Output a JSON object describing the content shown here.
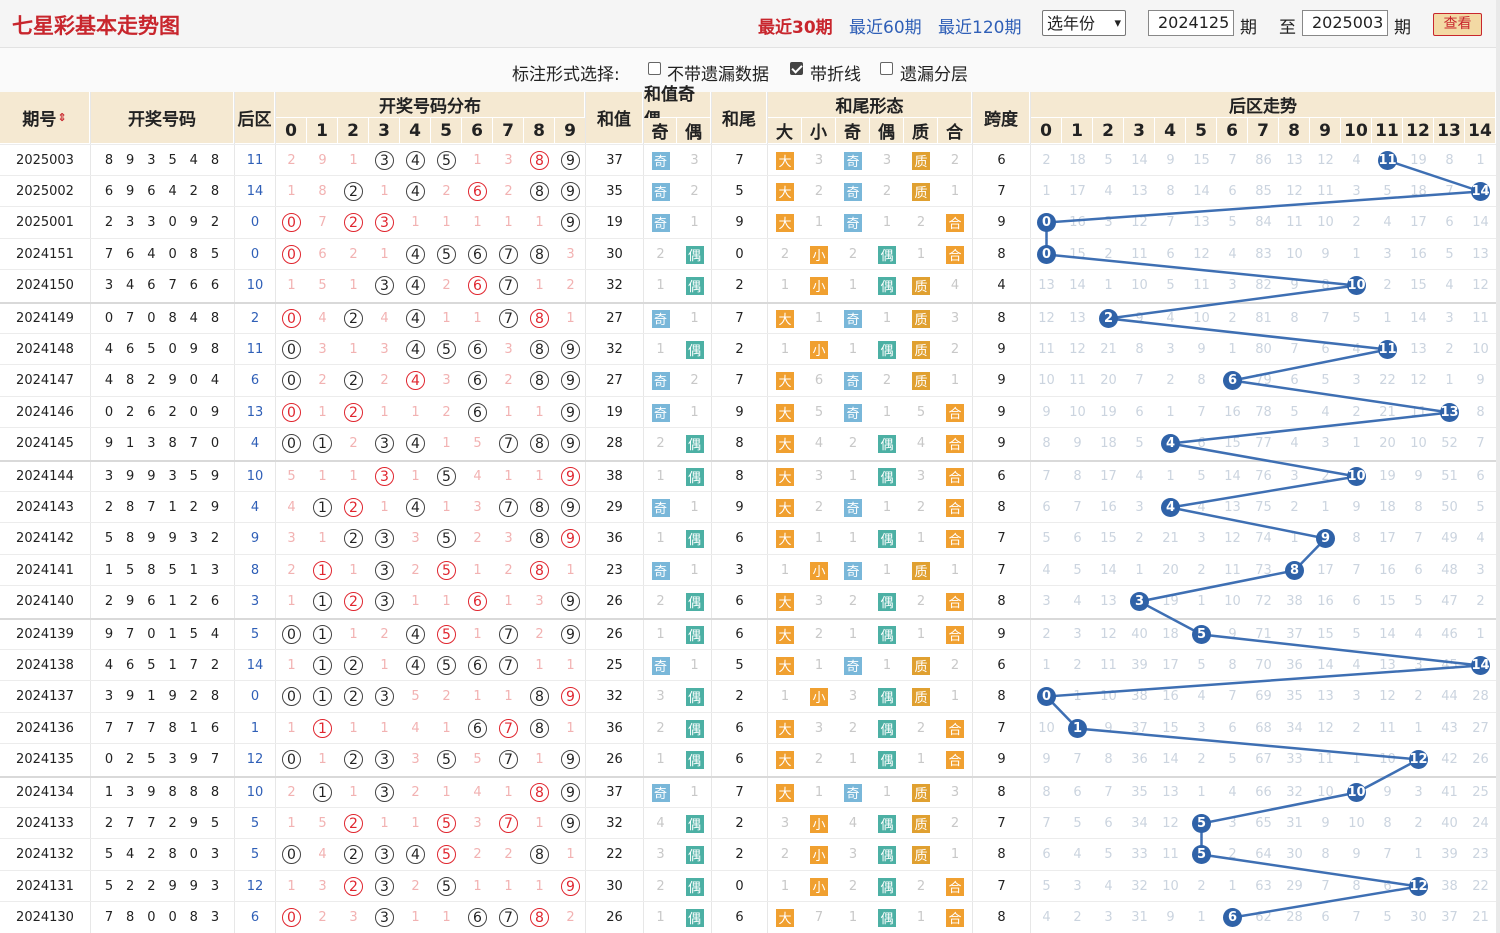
{
  "header": {
    "title": "七星彩基本走势图",
    "links": [
      "最近30期",
      "最近60期",
      "最近120期"
    ],
    "year_select": "选年份",
    "period_from": "2024125",
    "period_unit": "期",
    "to_label": "至",
    "period_to": "2025003",
    "query_button": "查看"
  },
  "options": {
    "label": "标注形式选择:",
    "items": [
      {
        "label": "不带遗漏数据",
        "checked": false
      },
      {
        "label": "带折线",
        "checked": true
      },
      {
        "label": "遗漏分层",
        "checked": false
      }
    ]
  },
  "table_headers": {
    "period": "期号",
    "sort_icon": "sort-arrows-icon",
    "numbers": "开奖号码",
    "back": "后区",
    "distribution": "开奖号码分布",
    "digits": [
      "0",
      "1",
      "2",
      "3",
      "4",
      "5",
      "6",
      "7",
      "8",
      "9"
    ],
    "sum": "和值",
    "sum_parity": "和值奇偶",
    "odd": "奇",
    "even": "偶",
    "tail": "和尾",
    "tail_form": "和尾形态",
    "form_cols": [
      "大",
      "小",
      "奇",
      "偶",
      "质",
      "合"
    ],
    "span": "跨度",
    "back_trend": "后区走势",
    "back_cols": [
      "0",
      "1",
      "2",
      "3",
      "4",
      "5",
      "6",
      "7",
      "8",
      "9",
      "10",
      "11",
      "12",
      "13",
      "14"
    ]
  },
  "rows": [
    {
      "period": "2025003",
      "nums": "8 9 3 5 4 8",
      "back": "11",
      "dist": [
        2,
        9,
        1,
        "3",
        "4",
        "5",
        1,
        3,
        "8r",
        "9"
      ],
      "sum": "37",
      "parity": [
        "奇",
        "3"
      ],
      "tail": "7",
      "form": [
        "大",
        "3",
        "奇",
        "3",
        "质",
        "2"
      ],
      "span": "6",
      "trend": [
        2,
        18,
        5,
        14,
        9,
        15,
        7,
        86,
        13,
        12,
        4,
        "11",
        19,
        8,
        1
      ]
    },
    {
      "period": "2025002",
      "nums": "6 9 6 4 2 8",
      "back": "14",
      "dist": [
        1,
        8,
        "2",
        1,
        "4",
        2,
        "6r",
        2,
        "8",
        "9"
      ],
      "sum": "35",
      "parity": [
        "奇",
        "2"
      ],
      "tail": "5",
      "form": [
        "大",
        "2",
        "奇",
        "2",
        "质",
        "1"
      ],
      "span": "7",
      "trend": [
        1,
        17,
        4,
        13,
        8,
        14,
        6,
        85,
        12,
        11,
        3,
        5,
        18,
        7,
        "14"
      ]
    },
    {
      "period": "2025001",
      "nums": "2 3 3 0 9 2",
      "back": "0",
      "dist": [
        "0r",
        7,
        "2r",
        "3r",
        1,
        1,
        1,
        1,
        1,
        "9"
      ],
      "sum": "19",
      "parity": [
        "奇",
        "1"
      ],
      "tail": "9",
      "form": [
        "大",
        "1",
        "奇",
        "1",
        "2",
        "合"
      ],
      "span": "9",
      "trend": [
        "0",
        16,
        3,
        12,
        7,
        13,
        5,
        84,
        11,
        10,
        2,
        4,
        17,
        6,
        14
      ]
    },
    {
      "period": "2024151",
      "nums": "7 6 4 0 8 5",
      "back": "0",
      "dist": [
        "0r",
        6,
        2,
        1,
        "4",
        "5",
        "6",
        "7",
        "8",
        3
      ],
      "sum": "30",
      "parity": [
        "2",
        "偶"
      ],
      "tail": "0",
      "form": [
        "2",
        "小",
        "2",
        "偶",
        "1",
        "合"
      ],
      "span": "8",
      "trend": [
        "0",
        15,
        2,
        11,
        6,
        12,
        4,
        83,
        10,
        9,
        1,
        3,
        16,
        5,
        13
      ]
    },
    {
      "period": "2024150",
      "nums": "3 4 6 7 6 6",
      "back": "10",
      "dist": [
        1,
        5,
        1,
        "3",
        "4",
        2,
        "6r",
        "7",
        1,
        2
      ],
      "sum": "32",
      "parity": [
        "1",
        "偶"
      ],
      "tail": "2",
      "form": [
        "1",
        "小",
        "1",
        "偶",
        "质",
        "4"
      ],
      "span": "4",
      "trend": [
        13,
        14,
        1,
        10,
        5,
        11,
        3,
        82,
        9,
        8,
        "10",
        2,
        15,
        4,
        12
      ]
    },
    {
      "period": "2024149",
      "nums": "0 7 0 8 4 8",
      "back": "2",
      "dist": [
        "0r",
        4,
        "2",
        4,
        "4",
        1,
        1,
        "7",
        "8r",
        1
      ],
      "sum": "27",
      "parity": [
        "奇",
        "1"
      ],
      "tail": "7",
      "form": [
        "大",
        "1",
        "奇",
        "1",
        "质",
        "3"
      ],
      "span": "8",
      "trend": [
        12,
        13,
        "2",
        9,
        4,
        10,
        2,
        81,
        8,
        7,
        5,
        1,
        14,
        3,
        11
      ]
    },
    {
      "period": "2024148",
      "nums": "4 6 5 0 9 8",
      "back": "11",
      "dist": [
        "0",
        3,
        1,
        3,
        "4",
        "5",
        "6",
        3,
        "8",
        "9"
      ],
      "sum": "32",
      "parity": [
        "1",
        "偶"
      ],
      "tail": "2",
      "form": [
        "1",
        "小",
        "1",
        "偶",
        "质",
        "2"
      ],
      "span": "9",
      "trend": [
        11,
        12,
        21,
        8,
        3,
        9,
        1,
        80,
        7,
        6,
        4,
        "11",
        13,
        2,
        10
      ]
    },
    {
      "period": "2024147",
      "nums": "4 8 2 9 0 4",
      "back": "6",
      "dist": [
        "0",
        2,
        "2",
        2,
        "4r",
        3,
        "6",
        2,
        "8",
        "9"
      ],
      "sum": "27",
      "parity": [
        "奇",
        "2"
      ],
      "tail": "7",
      "form": [
        "大",
        "6",
        "奇",
        "2",
        "质",
        "1"
      ],
      "span": "9",
      "trend": [
        10,
        11,
        20,
        7,
        2,
        8,
        "6",
        79,
        6,
        5,
        3,
        22,
        12,
        1,
        9
      ]
    },
    {
      "period": "2024146",
      "nums": "0 2 6 2 0 9",
      "back": "13",
      "dist": [
        "0r",
        1,
        "2r",
        1,
        1,
        2,
        "6",
        1,
        1,
        "9"
      ],
      "sum": "19",
      "parity": [
        "奇",
        "1"
      ],
      "tail": "9",
      "form": [
        "大",
        "5",
        "奇",
        "1",
        "5",
        "合"
      ],
      "span": "9",
      "trend": [
        9,
        10,
        19,
        6,
        1,
        7,
        16,
        78,
        5,
        4,
        2,
        21,
        11,
        "13",
        8
      ]
    },
    {
      "period": "2024145",
      "nums": "9 1 3 8 7 0",
      "back": "4",
      "dist": [
        "0",
        "1",
        2,
        "3",
        "4",
        1,
        5,
        "7",
        "8",
        "9"
      ],
      "sum": "28",
      "parity": [
        "2",
        "偶"
      ],
      "tail": "8",
      "form": [
        "大",
        "4",
        "2",
        "偶",
        "4",
        "合"
      ],
      "span": "9",
      "trend": [
        8,
        9,
        18,
        5,
        "4",
        6,
        15,
        77,
        4,
        3,
        1,
        20,
        10,
        52,
        7
      ]
    },
    {
      "period": "2024144",
      "nums": "3 9 9 3 5 9",
      "back": "10",
      "dist": [
        5,
        1,
        1,
        "3r",
        1,
        "5",
        4,
        1,
        1,
        "9r"
      ],
      "sum": "38",
      "parity": [
        "1",
        "偶"
      ],
      "tail": "8",
      "form": [
        "大",
        "3",
        "1",
        "偶",
        "3",
        "合"
      ],
      "span": "6",
      "trend": [
        7,
        8,
        17,
        4,
        1,
        5,
        14,
        76,
        3,
        2,
        "10",
        19,
        9,
        51,
        6
      ]
    },
    {
      "period": "2024143",
      "nums": "2 8 7 1 2 9",
      "back": "4",
      "dist": [
        4,
        "1",
        "2r",
        1,
        "4",
        1,
        3,
        "7",
        "8",
        "9"
      ],
      "sum": "29",
      "parity": [
        "奇",
        "1"
      ],
      "tail": "9",
      "form": [
        "大",
        "2",
        "奇",
        "1",
        "2",
        "合"
      ],
      "span": "8",
      "trend": [
        6,
        7,
        16,
        3,
        "4",
        4,
        13,
        75,
        2,
        1,
        9,
        18,
        8,
        50,
        5
      ]
    },
    {
      "period": "2024142",
      "nums": "5 8 9 9 3 2",
      "back": "9",
      "dist": [
        3,
        1,
        "2",
        "3",
        3,
        "5",
        2,
        3,
        "8",
        "9r"
      ],
      "sum": "36",
      "parity": [
        "1",
        "偶"
      ],
      "tail": "6",
      "form": [
        "大",
        "1",
        "1",
        "偶",
        "1",
        "合"
      ],
      "span": "7",
      "trend": [
        5,
        6,
        15,
        2,
        21,
        3,
        12,
        74,
        1,
        "9",
        8,
        17,
        7,
        49,
        4
      ]
    },
    {
      "period": "2024141",
      "nums": "1 5 8 5 1 3",
      "back": "8",
      "dist": [
        2,
        "1r",
        1,
        "3",
        2,
        "5r",
        1,
        2,
        "8r",
        1
      ],
      "sum": "23",
      "parity": [
        "奇",
        "1"
      ],
      "tail": "3",
      "form": [
        "1",
        "小",
        "奇",
        "1",
        "质",
        "1"
      ],
      "span": "7",
      "trend": [
        4,
        5,
        14,
        1,
        20,
        2,
        11,
        73,
        "8",
        17,
        7,
        16,
        6,
        48,
        3
      ]
    },
    {
      "period": "2024140",
      "nums": "2 9 6 1 2 6",
      "back": "3",
      "dist": [
        1,
        "1",
        "2r",
        "3",
        1,
        1,
        "6r",
        1,
        3,
        "9"
      ],
      "sum": "26",
      "parity": [
        "2",
        "偶"
      ],
      "tail": "6",
      "form": [
        "大",
        "3",
        "2",
        "偶",
        "2",
        "合"
      ],
      "span": "8",
      "trend": [
        3,
        4,
        13,
        "3",
        19,
        1,
        10,
        72,
        38,
        16,
        6,
        15,
        5,
        47,
        2
      ]
    },
    {
      "period": "2024139",
      "nums": "9 7 0 1 5 4",
      "back": "5",
      "dist": [
        "0",
        "1",
        1,
        2,
        "4",
        "5r",
        1,
        "7",
        2,
        "9"
      ],
      "sum": "26",
      "parity": [
        "1",
        "偶"
      ],
      "tail": "6",
      "form": [
        "大",
        "2",
        "1",
        "偶",
        "1",
        "合"
      ],
      "span": "9",
      "trend": [
        2,
        3,
        12,
        40,
        18,
        "5",
        9,
        71,
        37,
        15,
        5,
        14,
        4,
        46,
        1
      ]
    },
    {
      "period": "2024138",
      "nums": "4 6 5 1 7 2",
      "back": "14",
      "dist": [
        1,
        "1",
        "2",
        1,
        "4",
        "5",
        "6",
        "7",
        1,
        1
      ],
      "sum": "25",
      "parity": [
        "奇",
        "1"
      ],
      "tail": "5",
      "form": [
        "大",
        "1",
        "奇",
        "1",
        "质",
        "2"
      ],
      "span": "6",
      "trend": [
        1,
        2,
        11,
        39,
        17,
        5,
        8,
        70,
        36,
        14,
        4,
        13,
        3,
        45,
        "14"
      ]
    },
    {
      "period": "2024137",
      "nums": "3 9 1 9 2 8",
      "back": "0",
      "dist": [
        "0",
        "1",
        "2",
        "3",
        5,
        2,
        1,
        1,
        "8",
        "9r"
      ],
      "sum": "32",
      "parity": [
        "3",
        "偶"
      ],
      "tail": "2",
      "form": [
        "1",
        "小",
        "3",
        "偶",
        "质",
        "1"
      ],
      "span": "8",
      "trend": [
        "0",
        1,
        10,
        38,
        16,
        4,
        7,
        69,
        35,
        13,
        3,
        12,
        2,
        44,
        28
      ]
    },
    {
      "period": "2024136",
      "nums": "7 7 7 8 1 6",
      "back": "1",
      "dist": [
        1,
        "1r",
        1,
        1,
        4,
        1,
        "6",
        "7r",
        "8",
        1
      ],
      "sum": "36",
      "parity": [
        "2",
        "偶"
      ],
      "tail": "6",
      "form": [
        "大",
        "3",
        "2",
        "偶",
        "2",
        "合"
      ],
      "span": "7",
      "trend": [
        10,
        "1",
        9,
        37,
        15,
        3,
        6,
        68,
        34,
        12,
        2,
        11,
        1,
        43,
        27
      ]
    },
    {
      "period": "2024135",
      "nums": "0 2 5 3 9 7",
      "back": "12",
      "dist": [
        "0",
        1,
        "2",
        "3",
        3,
        "5",
        5,
        "7",
        1,
        "9"
      ],
      "sum": "26",
      "parity": [
        "1",
        "偶"
      ],
      "tail": "6",
      "form": [
        "大",
        "2",
        "1",
        "偶",
        "1",
        "合"
      ],
      "span": "9",
      "trend": [
        9,
        7,
        8,
        36,
        14,
        2,
        5,
        67,
        33,
        11,
        1,
        10,
        "12",
        42,
        26
      ]
    },
    {
      "period": "2024134",
      "nums": "1 3 9 8 8 8",
      "back": "10",
      "dist": [
        2,
        "1",
        1,
        "3",
        2,
        1,
        4,
        1,
        "8r",
        "9"
      ],
      "sum": "37",
      "parity": [
        "奇",
        "1"
      ],
      "tail": "7",
      "form": [
        "大",
        "1",
        "奇",
        "1",
        "质",
        "3"
      ],
      "span": "8",
      "trend": [
        8,
        6,
        7,
        35,
        13,
        1,
        4,
        66,
        32,
        10,
        "10",
        9,
        3,
        41,
        25
      ]
    },
    {
      "period": "2024133",
      "nums": "2 7 7 2 9 5",
      "back": "5",
      "dist": [
        1,
        5,
        "2r",
        1,
        1,
        "5r",
        3,
        "7r",
        1,
        "9"
      ],
      "sum": "32",
      "parity": [
        "4",
        "偶"
      ],
      "tail": "2",
      "form": [
        "3",
        "小",
        "4",
        "偶",
        "质",
        "2"
      ],
      "span": "7",
      "trend": [
        7,
        5,
        6,
        34,
        12,
        "5",
        3,
        65,
        31,
        9,
        10,
        8,
        2,
        40,
        24
      ]
    },
    {
      "period": "2024132",
      "nums": "5 4 2 8 0 3",
      "back": "5",
      "dist": [
        "0",
        4,
        "2",
        "3",
        "4",
        "5r",
        2,
        2,
        "8",
        1
      ],
      "sum": "22",
      "parity": [
        "3",
        "偶"
      ],
      "tail": "2",
      "form": [
        "2",
        "小",
        "3",
        "偶",
        "质",
        "1"
      ],
      "span": "8",
      "trend": [
        6,
        4,
        5,
        33,
        11,
        "5",
        2,
        64,
        30,
        8,
        9,
        7,
        1,
        39,
        23
      ]
    },
    {
      "period": "2024131",
      "nums": "5 2 2 9 9 3",
      "back": "12",
      "dist": [
        1,
        3,
        "2r",
        "3",
        2,
        "5",
        1,
        1,
        1,
        "9r"
      ],
      "sum": "30",
      "parity": [
        "2",
        "偶"
      ],
      "tail": "0",
      "form": [
        "1",
        "小",
        "2",
        "偶",
        "2",
        "合"
      ],
      "span": "7",
      "trend": [
        5,
        3,
        4,
        32,
        10,
        2,
        1,
        63,
        29,
        7,
        8,
        6,
        "12",
        38,
        22
      ]
    },
    {
      "period": "2024130",
      "nums": "7 8 0 0 8 3",
      "back": "6",
      "dist": [
        "0r",
        2,
        3,
        "3",
        1,
        1,
        "6",
        "7",
        "8r",
        2
      ],
      "sum": "26",
      "parity": [
        "1",
        "偶"
      ],
      "tail": "6",
      "form": [
        "大",
        "7",
        "1",
        "偶",
        "1",
        "合"
      ],
      "span": "8",
      "trend": [
        4,
        2,
        3,
        31,
        9,
        1,
        "6",
        62,
        28,
        6,
        7,
        5,
        30,
        37,
        21
      ]
    }
  ]
}
